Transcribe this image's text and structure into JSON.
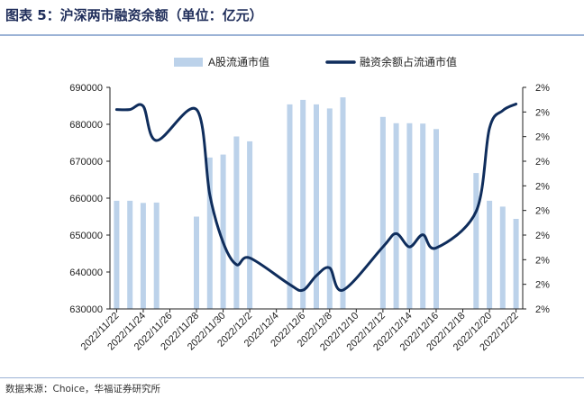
{
  "page": {
    "title": "图表 5：沪深两市融资余额（单位：亿元）",
    "source": "数据来源：Choice，华福证券研究所"
  },
  "chart_data": {
    "type": "bar+line",
    "title": "图表 5：沪深两市融资余额（单位：亿元）",
    "legend_position": "top",
    "categories": [
      "2022/11/22",
      "2022/11/23",
      "2022/11/24",
      "2022/11/25",
      "2022/11/26",
      "2022/11/27",
      "2022/11/28",
      "2022/11/29",
      "2022/11/30",
      "2022/12/1",
      "2022/12/2",
      "2022/12/3",
      "2022/12/4",
      "2022/12/5",
      "2022/12/6",
      "2022/12/7",
      "2022/12/8",
      "2022/12/9",
      "2022/12/10",
      "2022/12/11",
      "2022/12/12",
      "2022/12/13",
      "2022/12/14",
      "2022/12/15",
      "2022/12/16",
      "2022/12/17",
      "2022/12/18",
      "2022/12/19",
      "2022/12/20",
      "2022/12/21",
      "2022/12/22"
    ],
    "x_tick_labels": [
      "2022/11/22",
      "2022/11/24",
      "2022/11/26",
      "2022/11/28",
      "2022/11/30",
      "2022/12/2",
      "2022/12/4",
      "2022/12/6",
      "2022/12/8",
      "2022/12/10",
      "2022/12/12",
      "2022/12/14",
      "2022/12/16",
      "2022/12/18",
      "2022/12/20",
      "2022/12/22"
    ],
    "series": [
      {
        "name": "A股流通市值",
        "type": "bar",
        "axis": "left",
        "color": "#bcd2ea",
        "values": [
          659300,
          659300,
          658700,
          658800,
          null,
          null,
          655000,
          671000,
          671800,
          676700,
          675400,
          null,
          null,
          685400,
          686600,
          685400,
          684300,
          687300,
          null,
          null,
          682000,
          680300,
          680300,
          680200,
          678700,
          null,
          null,
          666800,
          659300,
          657700,
          654400
        ]
      },
      {
        "name": "融资余额占流通市值",
        "type": "line",
        "axis": "right",
        "color": "#0f2d5c",
        "values": [
          0.026,
          0.026,
          0.02603,
          0.02572,
          null,
          null,
          0.026,
          0.02523,
          0.0248,
          0.0246,
          0.02466,
          null,
          null,
          0.02442,
          0.02437,
          0.0245,
          0.02457,
          0.02437,
          null,
          null,
          0.02476,
          0.02488,
          0.02476,
          0.02487,
          0.02475,
          null,
          null,
          0.02508,
          0.02583,
          0.02599,
          0.02605
        ]
      }
    ],
    "y_left": {
      "min": 630000,
      "max": 690000,
      "tick_labels": [
        "630000",
        "640000",
        "650000",
        "660000",
        "670000",
        "680000",
        "690000"
      ]
    },
    "y_right": {
      "min": 0.0242,
      "max": 0.0262,
      "tick_labels": [
        "2%",
        "2%",
        "2%",
        "2%",
        "2%",
        "2%",
        "2%",
        "2%",
        "2%",
        "2%"
      ]
    },
    "grid": false
  }
}
